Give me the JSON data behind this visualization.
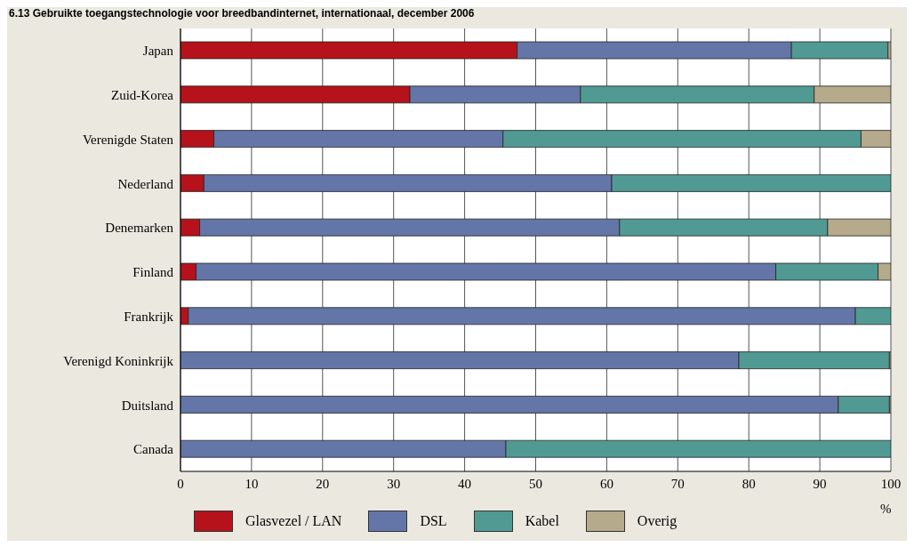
{
  "chart_data": {
    "type": "bar",
    "orientation": "horizontal",
    "stacked": true,
    "title": "6.13  Gebruikte toegangstechnologie voor breedbandinternet, internationaal, december 2006",
    "xlabel": "%",
    "categories": [
      "Japan",
      "Zuid-Korea",
      "Verenigde Staten",
      "Nederland",
      "Denemarken",
      "Finland",
      "Frankrijk",
      "Verenigd Koninkrijk",
      "Duitsland",
      "Canada"
    ],
    "series": [
      {
        "name": "Glasvezel / LAN",
        "color": "#b5121b",
        "values": [
          47.4,
          32.3,
          4.7,
          3.3,
          2.7,
          2.2,
          1.1,
          0,
          0,
          0
        ]
      },
      {
        "name": "DSL",
        "color": "#6476a8",
        "values": [
          38.6,
          24.0,
          40.7,
          57.4,
          59.1,
          81.6,
          93.9,
          78.6,
          92.6,
          45.8
        ]
      },
      {
        "name": "Kabel",
        "color": "#519a94",
        "values": [
          13.6,
          32.9,
          50.4,
          39.3,
          29.3,
          14.4,
          5.0,
          21.2,
          7.2,
          54.2
        ]
      },
      {
        "name": "Overig",
        "color": "#b5aa8c",
        "values": [
          0.4,
          10.8,
          4.2,
          0,
          8.9,
          1.8,
          0,
          0.2,
          0.2,
          0
        ]
      }
    ],
    "xlim": [
      0,
      100
    ],
    "xticks": [
      0,
      10,
      20,
      30,
      40,
      50,
      60,
      70,
      80,
      90,
      100
    ],
    "grid": "x",
    "legend": "bottom left"
  }
}
